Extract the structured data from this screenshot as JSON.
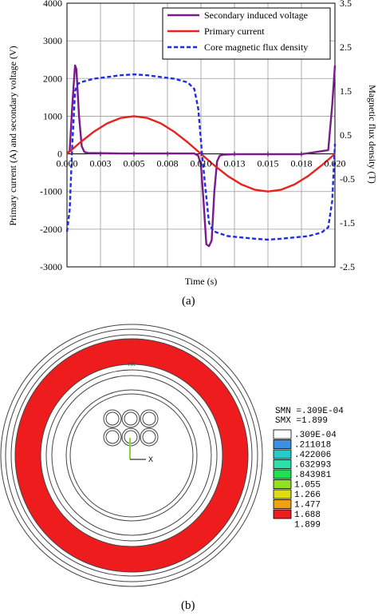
{
  "caption_a": "(a)",
  "caption_b": "(b)",
  "chart_data": {
    "type": "line",
    "xlabel": "Time (s)",
    "ylabel": "Primary current (A) and secondary voltage (V)",
    "ylabel2": "Magnetic flux density (T)",
    "xlim": [
      0,
      0.02
    ],
    "ylim": [
      -3000,
      4000
    ],
    "y2lim": [
      -2.5,
      3.5
    ],
    "xticks": [
      0,
      0.0025,
      0.005,
      0.0075,
      0.01,
      0.0125,
      0.015,
      0.0175,
      0.02
    ],
    "xtick_labels": [
      "0.000",
      "0.003",
      "0.005",
      "0.008",
      "0.010",
      "0.013",
      "0.015",
      "0.018",
      "0.020"
    ],
    "yticks": [
      -3000,
      -2000,
      -1000,
      0,
      1000,
      2000,
      3000,
      4000
    ],
    "ytick_labels": [
      "-3000",
      "-2000",
      "-1000",
      "0",
      "1000",
      "2000",
      "3000",
      "4000"
    ],
    "y2ticks": [
      -2.5,
      -1.5,
      -0.5,
      0.5,
      1.5,
      2.5,
      3.5
    ],
    "y2tick_labels": [
      "-2.5",
      "-1.5",
      "-0.5",
      "0.5",
      "1.5",
      "2.5",
      "3.5"
    ],
    "grid": true,
    "legend_position": "top-right",
    "series": [
      {
        "name": "Secondary induced voltage",
        "axis": "left",
        "color": "#7a1a8c",
        "style": "solid",
        "x": [
          0,
          0.0002,
          0.0004,
          0.0006,
          0.0007,
          0.0009,
          0.0011,
          0.0013,
          0.0016,
          0.002,
          0.004,
          0.006,
          0.008,
          0.0095,
          0.0098,
          0.01,
          0.0102,
          0.0104,
          0.0106,
          0.0108,
          0.011,
          0.0112,
          0.0114,
          0.0117,
          0.0125,
          0.015,
          0.0175,
          0.0195,
          0.0198,
          0.02
        ],
        "y": [
          0,
          80,
          1300,
          2350,
          2250,
          1000,
          200,
          50,
          20,
          20,
          10,
          10,
          10,
          10,
          -50,
          -300,
          -1300,
          -2400,
          -2450,
          -2300,
          -1000,
          -200,
          -50,
          -20,
          -10,
          -10,
          -10,
          100,
          1300,
          2350
        ]
      },
      {
        "name": "Primary current",
        "axis": "left",
        "color": "#e8231e",
        "style": "solid",
        "x": [
          0,
          0.001,
          0.002,
          0.003,
          0.004,
          0.005,
          0.006,
          0.007,
          0.008,
          0.009,
          0.01,
          0.011,
          0.012,
          0.013,
          0.014,
          0.015,
          0.016,
          0.017,
          0.018,
          0.019,
          0.02
        ],
        "y": [
          0,
          309,
          588,
          809,
          951,
          1000,
          951,
          809,
          588,
          309,
          0,
          -309,
          -588,
          -809,
          -951,
          -1000,
          -951,
          -809,
          -588,
          -309,
          0
        ]
      },
      {
        "name": "Core magnetic flux density",
        "axis": "right",
        "color": "#1f2de0",
        "style": "dashed",
        "x": [
          0,
          0.0002,
          0.0004,
          0.0006,
          0.0008,
          0.001,
          0.002,
          0.003,
          0.004,
          0.005,
          0.006,
          0.007,
          0.008,
          0.009,
          0.0095,
          0.0098,
          0.0101,
          0.0103,
          0.0106,
          0.0109,
          0.0112,
          0.012,
          0.014,
          0.015,
          0.016,
          0.018,
          0.019,
          0.0195,
          0.0198,
          0.02
        ],
        "y": [
          -1.7,
          -1.2,
          0.3,
          1.5,
          1.66,
          1.7,
          1.78,
          1.82,
          1.86,
          1.88,
          1.86,
          1.82,
          1.78,
          1.7,
          1.55,
          1.1,
          0.0,
          -0.6,
          -1.5,
          -1.68,
          -1.72,
          -1.8,
          -1.86,
          -1.88,
          -1.86,
          -1.8,
          -1.72,
          -1.6,
          -1.0,
          0.3
        ]
      }
    ]
  },
  "contour": {
    "label_mx": "MX",
    "axis_x_label": "X",
    "smn": "SMN =.309E-04",
    "smx": "SMX =1.899",
    "legend": [
      {
        "color": "#ffffff",
        "label": ".309E-04"
      },
      {
        "color": "#3d8fe0",
        "label": ".211018"
      },
      {
        "color": "#27c9c9",
        "label": ".422006"
      },
      {
        "color": "#2ee0a8",
        "label": ".632993"
      },
      {
        "color": "#22e050",
        "label": ".843981"
      },
      {
        "color": "#93e020",
        "label": "1.055"
      },
      {
        "color": "#dddd10",
        "label": "1.266"
      },
      {
        "color": "#f0a010",
        "label": "1.477"
      },
      {
        "color": "#ee1c1c",
        "label": "1.688"
      },
      {
        "color": null,
        "label": "1.899"
      }
    ]
  }
}
